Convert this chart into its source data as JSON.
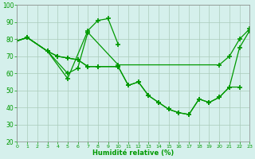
{
  "xlabel": "Humidité relative (%)",
  "bg_color": "#d5f0ec",
  "grid_color": "#aaccbb",
  "line_color": "#009900",
  "marker": "+",
  "markersize": 4,
  "markeredgewidth": 1.2,
  "linewidth": 0.9,
  "xlim": [
    0,
    23
  ],
  "ylim": [
    20,
    100
  ],
  "yticks": [
    20,
    30,
    40,
    50,
    60,
    70,
    80,
    90,
    100
  ],
  "xticks": [
    0,
    1,
    2,
    3,
    4,
    5,
    6,
    7,
    8,
    9,
    10,
    11,
    12,
    13,
    14,
    15,
    16,
    17,
    18,
    19,
    20,
    21,
    22,
    23
  ],
  "series": [
    {
      "x": [
        0,
        1,
        3,
        5,
        7,
        8,
        9,
        10
      ],
      "y": [
        79,
        81,
        73,
        57,
        85,
        91,
        92,
        77
      ]
    },
    {
      "x": [
        0,
        1,
        3,
        5,
        6,
        7,
        10,
        20,
        21,
        22,
        23
      ],
      "y": [
        79,
        81,
        73,
        60,
        63,
        84,
        65,
        65,
        70,
        80,
        86
      ]
    },
    {
      "x": [
        0,
        1,
        3,
        4,
        5,
        6,
        7,
        8,
        10,
        11,
        12,
        13,
        14,
        15,
        16,
        17,
        18,
        19,
        20,
        21,
        22
      ],
      "y": [
        79,
        81,
        73,
        70,
        69,
        68,
        64,
        64,
        64,
        53,
        55,
        47,
        43,
        39,
        37,
        36,
        45,
        43,
        46,
        52,
        52
      ]
    },
    {
      "x": [
        0,
        1,
        3,
        4,
        5,
        6,
        7,
        8,
        10,
        11,
        12,
        13,
        14,
        15,
        16,
        17,
        18,
        19,
        20,
        21,
        22,
        23
      ],
      "y": [
        79,
        81,
        73,
        70,
        69,
        68,
        64,
        64,
        64,
        53,
        55,
        47,
        43,
        39,
        37,
        36,
        45,
        43,
        46,
        52,
        75,
        85
      ]
    }
  ]
}
